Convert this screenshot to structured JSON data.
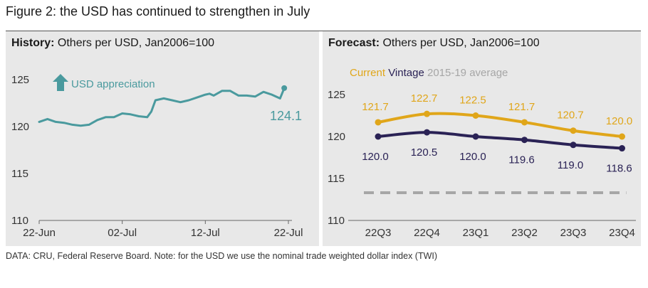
{
  "figure_title": "Figure 2: the USD has continued to strengthen in July",
  "source_note": "DATA: CRU, Federal Reserve Board. Note: for the USD we use the nominal trade weighted dollar index (TWI)",
  "colors": {
    "panel_bg": "#e8e8e8",
    "history_line": "#4a9a9e",
    "current": "#e0a61a",
    "vintage": "#2a2255",
    "average": "#a6a6a6"
  },
  "chart_data": [
    {
      "type": "line",
      "title_bold": "History:",
      "title_rest": " Others per USD, Jan2006=100",
      "x_ticks": [
        "22-Jun",
        "02-Jul",
        "12-Jul",
        "22-Jul"
      ],
      "x_tick_days": [
        0,
        10,
        20,
        30
      ],
      "ylim": [
        110,
        127
      ],
      "y_ticks": [
        110,
        115,
        120,
        125
      ],
      "annotation": "USD appreciation",
      "annotation_icon": "arrow-up-icon",
      "end_label": "124.1",
      "series": [
        {
          "x": [
            0,
            1,
            2,
            3,
            4,
            5,
            6,
            7,
            8,
            9,
            10,
            11,
            12,
            13,
            13.5,
            14,
            15,
            16,
            17,
            18,
            19,
            20,
            20.5,
            21,
            22,
            23,
            24,
            25,
            26,
            27,
            28,
            29,
            29.5
          ],
          "values": [
            120.5,
            120.8,
            120.5,
            120.4,
            120.2,
            120.1,
            120.2,
            120.7,
            121.0,
            121.0,
            121.4,
            121.3,
            121.1,
            121.0,
            121.6,
            122.8,
            123.0,
            122.8,
            122.6,
            122.8,
            123.1,
            123.4,
            123.5,
            123.3,
            123.8,
            123.8,
            123.3,
            123.3,
            123.2,
            123.7,
            123.4,
            123.0,
            124.1
          ]
        }
      ]
    },
    {
      "type": "line",
      "title_bold": "Forecast:",
      "title_rest": " Others per USD, Jan2006=100",
      "categories": [
        "22Q3",
        "22Q4",
        "23Q1",
        "23Q2",
        "23Q3",
        "23Q4"
      ],
      "ylim": [
        110,
        127
      ],
      "y_ticks": [
        110,
        115,
        120,
        125
      ],
      "legend": {
        "current": "Current",
        "vintage": "Vintage",
        "average": "2015-19 average"
      },
      "series": [
        {
          "name": "Current",
          "values": [
            121.7,
            122.7,
            122.5,
            121.7,
            120.7,
            120.0
          ],
          "labels": [
            "121.7",
            "122.7",
            "122.5",
            "121.7",
            "120.7",
            "120.0"
          ]
        },
        {
          "name": "Vintage",
          "values": [
            120.0,
            120.5,
            120.0,
            119.6,
            119.0,
            118.6
          ],
          "labels": [
            "120.0",
            "120.5",
            "120.0",
            "119.6",
            "119.0",
            "118.6"
          ]
        },
        {
          "name": "2015-19 average",
          "values": [
            113.3,
            113.3,
            113.3,
            113.3,
            113.3,
            113.3
          ]
        }
      ]
    }
  ]
}
